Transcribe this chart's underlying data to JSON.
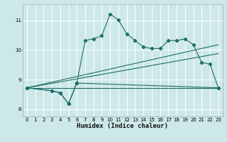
{
  "xlabel": "Humidex (Indice chaleur)",
  "bg_color": "#cde8e8",
  "grid_color": "#b0d8d8",
  "line_color": "#1a6e6a",
  "xlim": [
    -0.5,
    23.5
  ],
  "ylim": [
    7.75,
    11.55
  ],
  "yticks": [
    8,
    9,
    10,
    11
  ],
  "xticks": [
    0,
    1,
    2,
    3,
    4,
    5,
    6,
    7,
    8,
    9,
    10,
    11,
    12,
    13,
    14,
    15,
    16,
    17,
    18,
    19,
    20,
    21,
    22,
    23
  ],
  "series1_x": [
    0,
    3,
    4,
    5,
    6,
    7,
    8,
    9,
    10,
    11,
    12,
    13,
    14,
    15,
    16,
    17,
    18,
    19,
    20,
    21,
    22,
    23
  ],
  "series1_y": [
    8.72,
    8.62,
    8.55,
    8.18,
    8.88,
    10.32,
    10.38,
    10.48,
    11.22,
    11.02,
    10.55,
    10.32,
    10.1,
    10.05,
    10.05,
    10.32,
    10.32,
    10.38,
    10.18,
    9.58,
    9.52,
    8.72
  ],
  "series2_x": [
    0,
    3,
    4,
    5,
    6,
    23
  ],
  "series2_y": [
    8.72,
    8.62,
    8.55,
    8.18,
    8.88,
    8.72
  ],
  "series3_x": [
    0,
    23
  ],
  "series3_y": [
    8.72,
    8.72
  ],
  "series4_x": [
    0,
    23
  ],
  "series4_y": [
    8.72,
    9.88
  ],
  "series5_x": [
    0,
    23
  ],
  "series5_y": [
    8.72,
    10.18
  ]
}
